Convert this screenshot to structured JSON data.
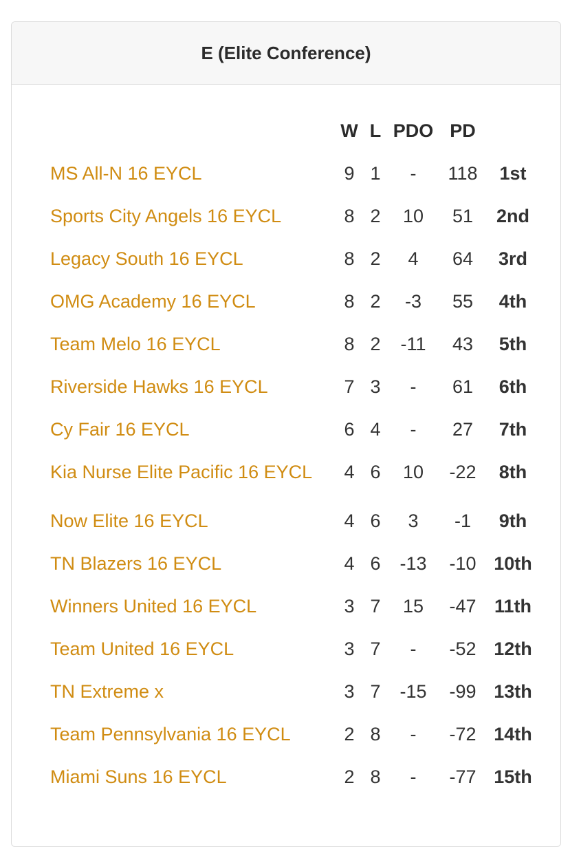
{
  "card": {
    "title": "E (Elite Conference)"
  },
  "table": {
    "headers": {
      "team": "",
      "w": "W",
      "l": "L",
      "pdo": "PDO",
      "pd": "PD",
      "place": ""
    },
    "rows": [
      {
        "team": "MS All-N 16 EYCL",
        "w": "9",
        "l": "1",
        "pdo": "-",
        "pd": "118",
        "place": "1st"
      },
      {
        "team": "Sports City Angels 16 EYCL",
        "w": "8",
        "l": "2",
        "pdo": "10",
        "pd": "51",
        "place": "2nd"
      },
      {
        "team": "Legacy South 16 EYCL",
        "w": "8",
        "l": "2",
        "pdo": "4",
        "pd": "64",
        "place": "3rd"
      },
      {
        "team": "OMG Academy 16 EYCL",
        "w": "8",
        "l": "2",
        "pdo": "-3",
        "pd": "55",
        "place": "4th"
      },
      {
        "team": "Team Melo 16 EYCL",
        "w": "8",
        "l": "2",
        "pdo": "-11",
        "pd": "43",
        "place": "5th"
      },
      {
        "team": "Riverside Hawks 16 EYCL",
        "w": "7",
        "l": "3",
        "pdo": "-",
        "pd": "61",
        "place": "6th"
      },
      {
        "team": "Cy Fair 16 EYCL",
        "w": "6",
        "l": "4",
        "pdo": "-",
        "pd": "27",
        "place": "7th"
      },
      {
        "team": "Kia Nurse Elite Pacific 16 EYCL",
        "w": "4",
        "l": "6",
        "pdo": "10",
        "pd": "-22",
        "place": "8th"
      },
      {
        "team": "Now Elite 16 EYCL",
        "w": "4",
        "l": "6",
        "pdo": "3",
        "pd": "-1",
        "place": "9th"
      },
      {
        "team": "TN Blazers 16 EYCL",
        "w": "4",
        "l": "6",
        "pdo": "-13",
        "pd": "-10",
        "place": "10th"
      },
      {
        "team": "Winners United 16 EYCL",
        "w": "3",
        "l": "7",
        "pdo": "15",
        "pd": "-47",
        "place": "11th"
      },
      {
        "team": "Team United 16 EYCL",
        "w": "3",
        "l": "7",
        "pdo": "-",
        "pd": "-52",
        "place": "12th"
      },
      {
        "team": "TN Extreme x",
        "w": "3",
        "l": "7",
        "pdo": "-15",
        "pd": "-99",
        "place": "13th"
      },
      {
        "team": "Team Pennsylvania 16 EYCL",
        "w": "2",
        "l": "8",
        "pdo": "-",
        "pd": "-72",
        "place": "14th"
      },
      {
        "team": "Miami Suns 16 EYCL",
        "w": "2",
        "l": "8",
        "pdo": "-",
        "pd": "-77",
        "place": "15th"
      }
    ]
  },
  "colors": {
    "team_link": "#d08c12",
    "header_bg": "#f7f7f7"
  }
}
